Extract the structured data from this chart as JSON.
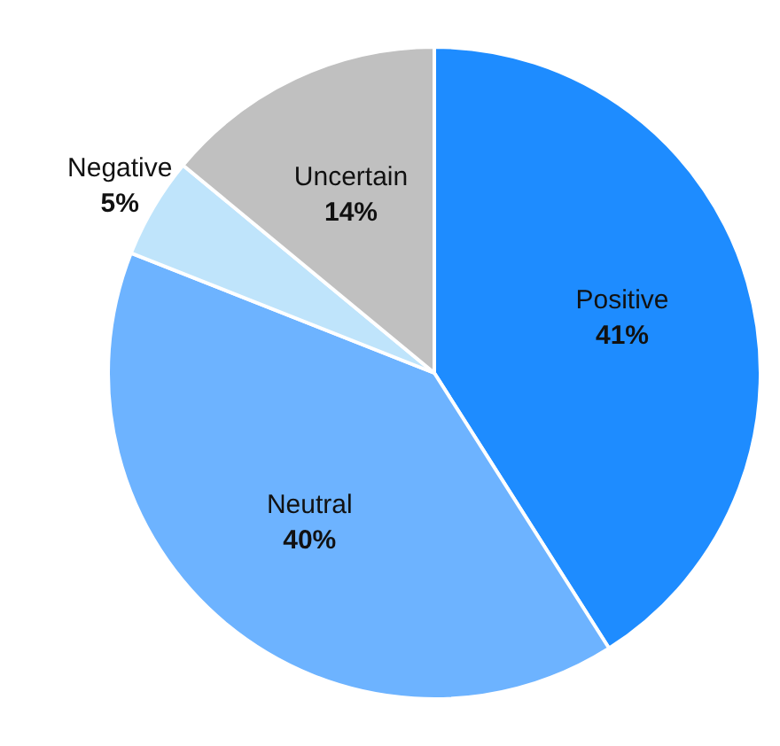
{
  "chart_data": {
    "type": "pie",
    "categories": [
      "Positive",
      "Neutral",
      "Negative",
      "Uncertain"
    ],
    "values": [
      41,
      40,
      5,
      14
    ],
    "colors": [
      "#1e8cff",
      "#6db3ff",
      "#bfe4fb",
      "#c0c0c0"
    ],
    "value_labels": [
      "41%",
      "40%",
      "5%",
      "14%"
    ],
    "legend": false
  }
}
